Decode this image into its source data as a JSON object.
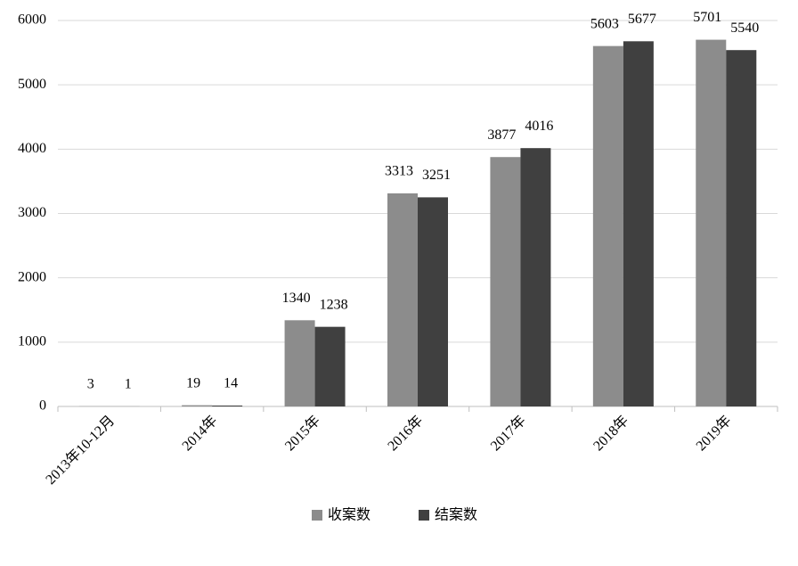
{
  "chart_data": {
    "type": "bar",
    "categories": [
      "2013年10-12月",
      "2014年",
      "2015年",
      "2016年",
      "2017年",
      "2018年",
      "2019年"
    ],
    "series": [
      {
        "name": "收案数",
        "color": "#8c8c8c",
        "values": [
          3,
          19,
          1340,
          3313,
          3877,
          5603,
          5701
        ]
      },
      {
        "name": "结案数",
        "color": "#404040",
        "values": [
          1,
          14,
          1238,
          3251,
          4016,
          5677,
          5540
        ]
      }
    ],
    "ylim": [
      0,
      6000
    ],
    "yticks": [
      0,
      1000,
      2000,
      3000,
      4000,
      5000,
      6000
    ],
    "grid": true,
    "legend": "bottom"
  }
}
